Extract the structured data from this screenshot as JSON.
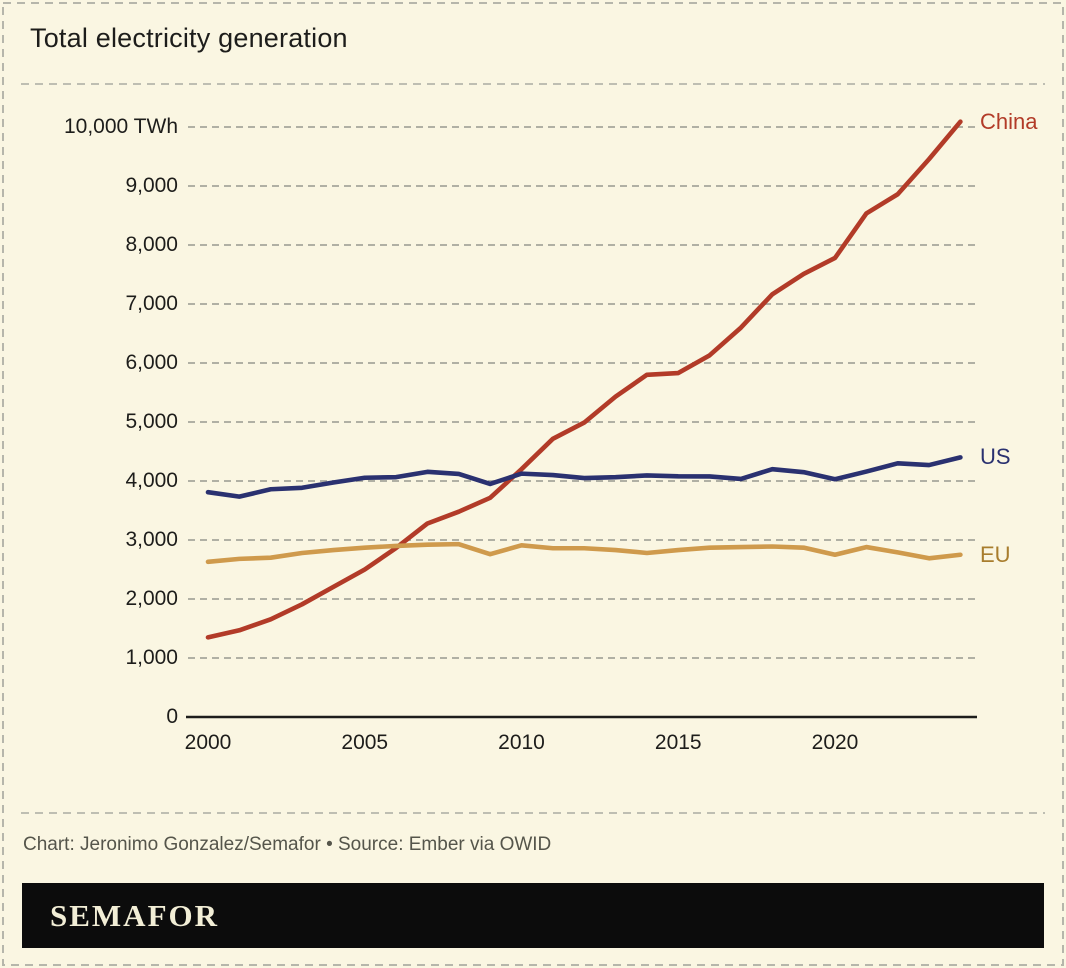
{
  "header": {
    "title": "Total electricity generation"
  },
  "footer": {
    "attribution": "Chart: Jeronimo Gonzalez/Semafor • Source: Ember via OWID",
    "brand": "SEMAFOR"
  },
  "colors": {
    "background": "#faf6e2",
    "border_and_separators": "#b6b6ab",
    "gridline": "#b0b0a4",
    "axis_text": "#1d1d1b",
    "attribution_text": "#55554b",
    "brand_bar": "#0c0c0c",
    "brand_text": "#f2eed6",
    "china": "#b23b28",
    "us": "#2a3170",
    "eu_line": "#cf9a4c",
    "eu_label": "#a87d2d"
  },
  "chart_data": {
    "type": "line",
    "title": "Total electricity generation",
    "unit": "TWh",
    "grid": "horizontal-dashed",
    "legend_position": "line-end-labels-right",
    "xlim": [
      2000,
      2024
    ],
    "ylim": [
      0,
      10000
    ],
    "x": [
      2000,
      2001,
      2002,
      2003,
      2004,
      2005,
      2006,
      2007,
      2008,
      2009,
      2010,
      2011,
      2012,
      2013,
      2014,
      2015,
      2016,
      2017,
      2018,
      2019,
      2020,
      2021,
      2022,
      2023,
      2024
    ],
    "series": [
      {
        "name": "China",
        "color": "#b23b28",
        "label_color": "#b23b28",
        "values": [
          1350,
          1470,
          1655,
          1910,
          2205,
          2500,
          2865,
          3280,
          3480,
          3715,
          4200,
          4715,
          4990,
          5430,
          5800,
          5830,
          6130,
          6600,
          7165,
          7510,
          7780,
          8535,
          8860,
          9455,
          10090
        ]
      },
      {
        "name": "US",
        "color": "#2a3170",
        "label_color": "#2a3170",
        "values": [
          3810,
          3735,
          3860,
          3885,
          3975,
          4055,
          4065,
          4155,
          4120,
          3950,
          4125,
          4100,
          4050,
          4065,
          4095,
          4080,
          4077,
          4035,
          4200,
          4150,
          4030,
          4160,
          4300,
          4270,
          4400
        ]
      },
      {
        "name": "EU",
        "color": "#cf9a4c",
        "label_color": "#a87d2d",
        "values": [
          2630,
          2680,
          2700,
          2780,
          2830,
          2870,
          2900,
          2920,
          2930,
          2760,
          2910,
          2860,
          2860,
          2830,
          2780,
          2830,
          2870,
          2880,
          2890,
          2870,
          2750,
          2880,
          2790,
          2690,
          2750
        ]
      }
    ],
    "yticks": [
      {
        "value": 0,
        "label": "0"
      },
      {
        "value": 1000,
        "label": "1,000"
      },
      {
        "value": 2000,
        "label": "2,000"
      },
      {
        "value": 3000,
        "label": "3,000"
      },
      {
        "value": 4000,
        "label": "4,000"
      },
      {
        "value": 5000,
        "label": "5,000"
      },
      {
        "value": 6000,
        "label": "6,000"
      },
      {
        "value": 7000,
        "label": "7,000"
      },
      {
        "value": 8000,
        "label": "8,000"
      },
      {
        "value": 9000,
        "label": "9,000"
      },
      {
        "value": 10000,
        "label": "10,000 TWh"
      }
    ],
    "xticks": [
      {
        "year": 2000,
        "label": "2000"
      },
      {
        "year": 2005,
        "label": "2005"
      },
      {
        "year": 2010,
        "label": "2010"
      },
      {
        "year": 2015,
        "label": "2015"
      },
      {
        "year": 2020,
        "label": "2020"
      }
    ]
  }
}
